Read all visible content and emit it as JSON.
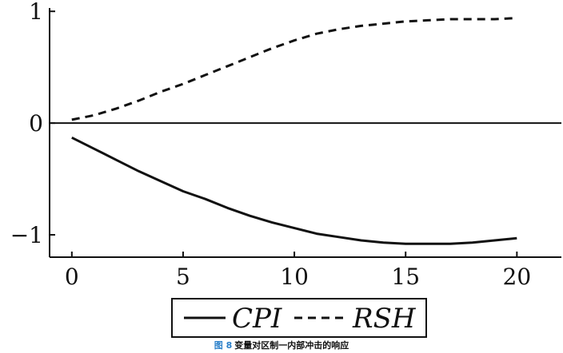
{
  "chart_data": {
    "type": "line",
    "x_ticks": [
      0,
      5,
      10,
      15,
      20
    ],
    "y_ticks": [
      -1,
      0,
      1
    ],
    "y_tick_labels": [
      "−1",
      "0",
      "1"
    ],
    "xlim": [
      -1,
      22
    ],
    "ylim": [
      -1.2,
      1.03
    ],
    "series": [
      {
        "name": "CPI",
        "style": "solid",
        "color": "#111111",
        "x": [
          0,
          1,
          2,
          3,
          4,
          5,
          6,
          7,
          8,
          9,
          10,
          11,
          12,
          13,
          14,
          15,
          16,
          17,
          18,
          19,
          20
        ],
        "values": [
          -0.13,
          -0.23,
          -0.33,
          -0.43,
          -0.52,
          -0.61,
          -0.68,
          -0.76,
          -0.83,
          -0.89,
          -0.94,
          -0.99,
          -1.02,
          -1.05,
          -1.07,
          -1.08,
          -1.08,
          -1.08,
          -1.07,
          -1.05,
          -1.03
        ]
      },
      {
        "name": "RSH",
        "style": "dashed",
        "color": "#111111",
        "x": [
          0,
          1,
          2,
          3,
          4,
          5,
          6,
          7,
          8,
          9,
          10,
          11,
          12,
          13,
          14,
          15,
          16,
          17,
          18,
          19,
          20
        ],
        "values": [
          0.03,
          0.07,
          0.13,
          0.2,
          0.28,
          0.35,
          0.43,
          0.51,
          0.59,
          0.67,
          0.74,
          0.8,
          0.84,
          0.87,
          0.89,
          0.91,
          0.92,
          0.93,
          0.93,
          0.93,
          0.94
        ]
      }
    ],
    "legend": {
      "position": "bottom-center"
    },
    "grid": false
  },
  "caption": {
    "figure_number": "图 8",
    "text": "变量对区制一内部冲击的响应"
  }
}
